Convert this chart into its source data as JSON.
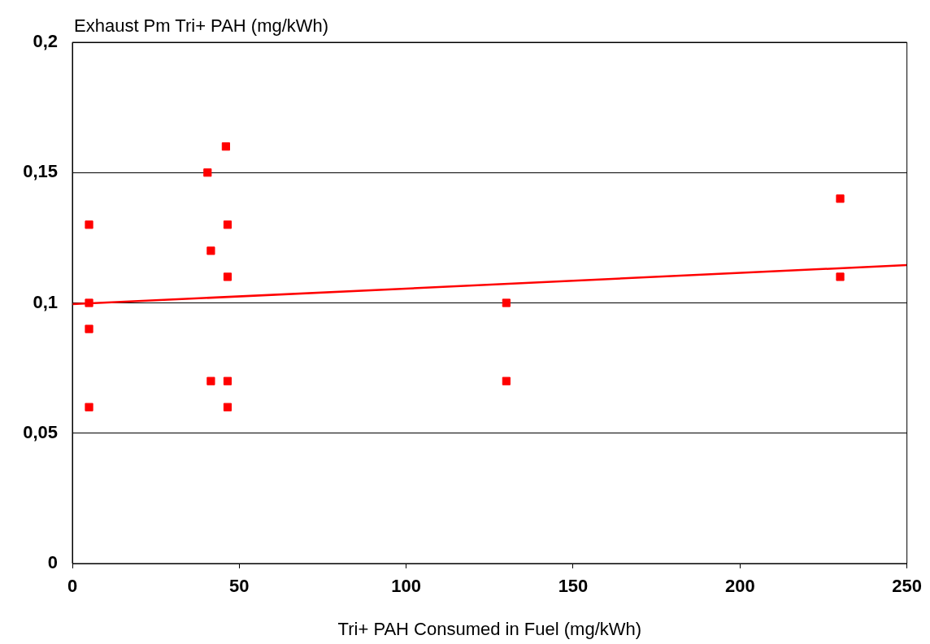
{
  "chart_data": {
    "type": "scatter",
    "xlabel": "Tri+ PAH Consumed in Fuel (mg/kWh)",
    "ylabel": "Exhaust Pm Tri+ PAH (mg/kWh)",
    "xlim": [
      0,
      250
    ],
    "xticks": [
      0,
      50,
      100,
      150,
      200,
      250
    ],
    "ylim": [
      0,
      0.2
    ],
    "yticks": [
      {
        "value": 0,
        "label": "0"
      },
      {
        "value": 0.05,
        "label": "0,05"
      },
      {
        "value": 0.1,
        "label": "0,1"
      },
      {
        "value": 0.15,
        "label": "0,15"
      },
      {
        "value": 0.2,
        "label": "0,2"
      }
    ],
    "grid": "y",
    "legend": false,
    "marker": "square",
    "series": [
      {
        "color": "#ff0000",
        "x": [
          5,
          5,
          5,
          5,
          40.5,
          41.5,
          41.5,
          46,
          46.5,
          46.5,
          46.5,
          46.5,
          130,
          130,
          230,
          230
        ],
        "values": [
          0.13,
          0.1,
          0.09,
          0.06,
          0.15,
          0.12,
          0.07,
          0.16,
          0.13,
          0.11,
          0.07,
          0.06,
          0.1,
          0.07,
          0.14,
          0.11
        ]
      },
      {
        "type": "line",
        "marker": "none",
        "color": "#ff0000",
        "x": [
          0,
          250
        ],
        "values": [
          0.0995,
          0.1145
        ]
      }
    ]
  }
}
